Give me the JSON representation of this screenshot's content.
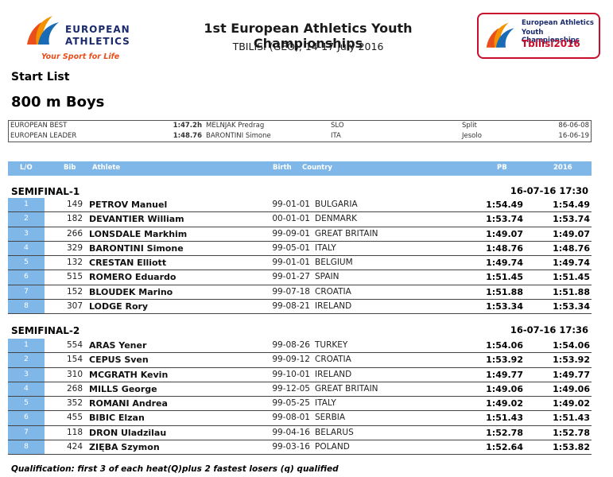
{
  "header": {
    "org_logo": {
      "line1": "EUROPEAN",
      "line2": "ATHLETICS",
      "tagline": "Your Sport for Life"
    },
    "title": "1st European Athletics Youth Championships",
    "subtitle": "TBILISI (GEO), 14-17 July 2016",
    "event_logo": {
      "line1": "European Athletics",
      "line2": "Youth Championships",
      "line3": "Tbilisi2016"
    }
  },
  "page": {
    "label": "Start List",
    "event": "800 m Boys"
  },
  "records": [
    {
      "label": "EUROPEAN BEST",
      "performance": "1:47.2h",
      "name": "MELNJAK Predrag",
      "country": "SLO",
      "place": "Split",
      "date": "86-06-08"
    },
    {
      "label": "EUROPEAN LEADER",
      "performance": "1:48.76",
      "name": "BARONTINI Simone",
      "country": "ITA",
      "place": "Jesolo",
      "date": "16-06-19"
    }
  ],
  "columns": {
    "lane": "L/O",
    "bib": "Bib",
    "athlete": "Athlete",
    "birth": "Birth",
    "country": "Country",
    "pb": "PB",
    "sb": "2016"
  },
  "heats": [
    {
      "name": "SEMIFINAL-1",
      "datetime": "16-07-16  17:30",
      "rows": [
        {
          "lane": "1",
          "bib": "149",
          "athlete": "PETROV Manuel",
          "birth": "99-01-01",
          "country": "BULGARIA",
          "pb": "1:54.49",
          "sb": "1:54.49"
        },
        {
          "lane": "2",
          "bib": "182",
          "athlete": "DEVANTIER William",
          "birth": "00-01-01",
          "country": "DENMARK",
          "pb": "1:53.74",
          "sb": "1:53.74"
        },
        {
          "lane": "3",
          "bib": "266",
          "athlete": "LONSDALE Markhim",
          "birth": "99-09-01",
          "country": "GREAT BRITAIN",
          "pb": "1:49.07",
          "sb": "1:49.07"
        },
        {
          "lane": "4",
          "bib": "329",
          "athlete": "BARONTINI Simone",
          "birth": "99-05-01",
          "country": "ITALY",
          "pb": "1:48.76",
          "sb": "1:48.76"
        },
        {
          "lane": "5",
          "bib": "132",
          "athlete": "CRESTAN Elliott",
          "birth": "99-01-01",
          "country": "BELGIUM",
          "pb": "1:49.74",
          "sb": "1:49.74"
        },
        {
          "lane": "6",
          "bib": "515",
          "athlete": "ROMERO Eduardo",
          "birth": "99-01-27",
          "country": "SPAIN",
          "pb": "1:51.45",
          "sb": "1:51.45"
        },
        {
          "lane": "7",
          "bib": "152",
          "athlete": "BLOUDEK Marino",
          "birth": "99-07-18",
          "country": "CROATIA",
          "pb": "1:51.88",
          "sb": "1:51.88"
        },
        {
          "lane": "8",
          "bib": "307",
          "athlete": "LODGE Rory",
          "birth": "99-08-21",
          "country": "IRELAND",
          "pb": "1:53.34",
          "sb": "1:53.34"
        }
      ]
    },
    {
      "name": "SEMIFINAL-2",
      "datetime": "16-07-16  17:36",
      "rows": [
        {
          "lane": "1",
          "bib": "554",
          "athlete": "ARAS Yener",
          "birth": "99-08-26",
          "country": "TURKEY",
          "pb": "1:54.06",
          "sb": "1:54.06"
        },
        {
          "lane": "2",
          "bib": "154",
          "athlete": "CEPUS Sven",
          "birth": "99-09-12",
          "country": "CROATIA",
          "pb": "1:53.92",
          "sb": "1:53.92"
        },
        {
          "lane": "3",
          "bib": "310",
          "athlete": "MCGRATH Kevin",
          "birth": "99-10-01",
          "country": "IRELAND",
          "pb": "1:49.77",
          "sb": "1:49.77"
        },
        {
          "lane": "4",
          "bib": "268",
          "athlete": "MILLS George",
          "birth": "99-12-05",
          "country": "GREAT BRITAIN",
          "pb": "1:49.06",
          "sb": "1:49.06"
        },
        {
          "lane": "5",
          "bib": "352",
          "athlete": "ROMANI Andrea",
          "birth": "99-05-25",
          "country": "ITALY",
          "pb": "1:49.02",
          "sb": "1:49.02"
        },
        {
          "lane": "6",
          "bib": "455",
          "athlete": "BIBIC Elzan",
          "birth": "99-08-01",
          "country": "SERBIA",
          "pb": "1:51.43",
          "sb": "1:51.43"
        },
        {
          "lane": "7",
          "bib": "118",
          "athlete": "DRON Uladzilau",
          "birth": "99-04-16",
          "country": "BELARUS",
          "pb": "1:52.78",
          "sb": "1:52.78"
        },
        {
          "lane": "8",
          "bib": "424",
          "athlete": "ZIĘBA Szymon",
          "birth": "99-03-16",
          "country": "POLAND",
          "pb": "1:52.64",
          "sb": "1:53.82"
        }
      ]
    }
  ],
  "footer": {
    "qualification": "Qualification: first 3 of each heat(Q)plus 2  fastest losers (q) qualified"
  },
  "colors": {
    "accent_blue": "#7fb7e9",
    "brand_navy": "#1a2a6c",
    "brand_orange": "#e94e1b",
    "brand_red": "#c8102e"
  }
}
